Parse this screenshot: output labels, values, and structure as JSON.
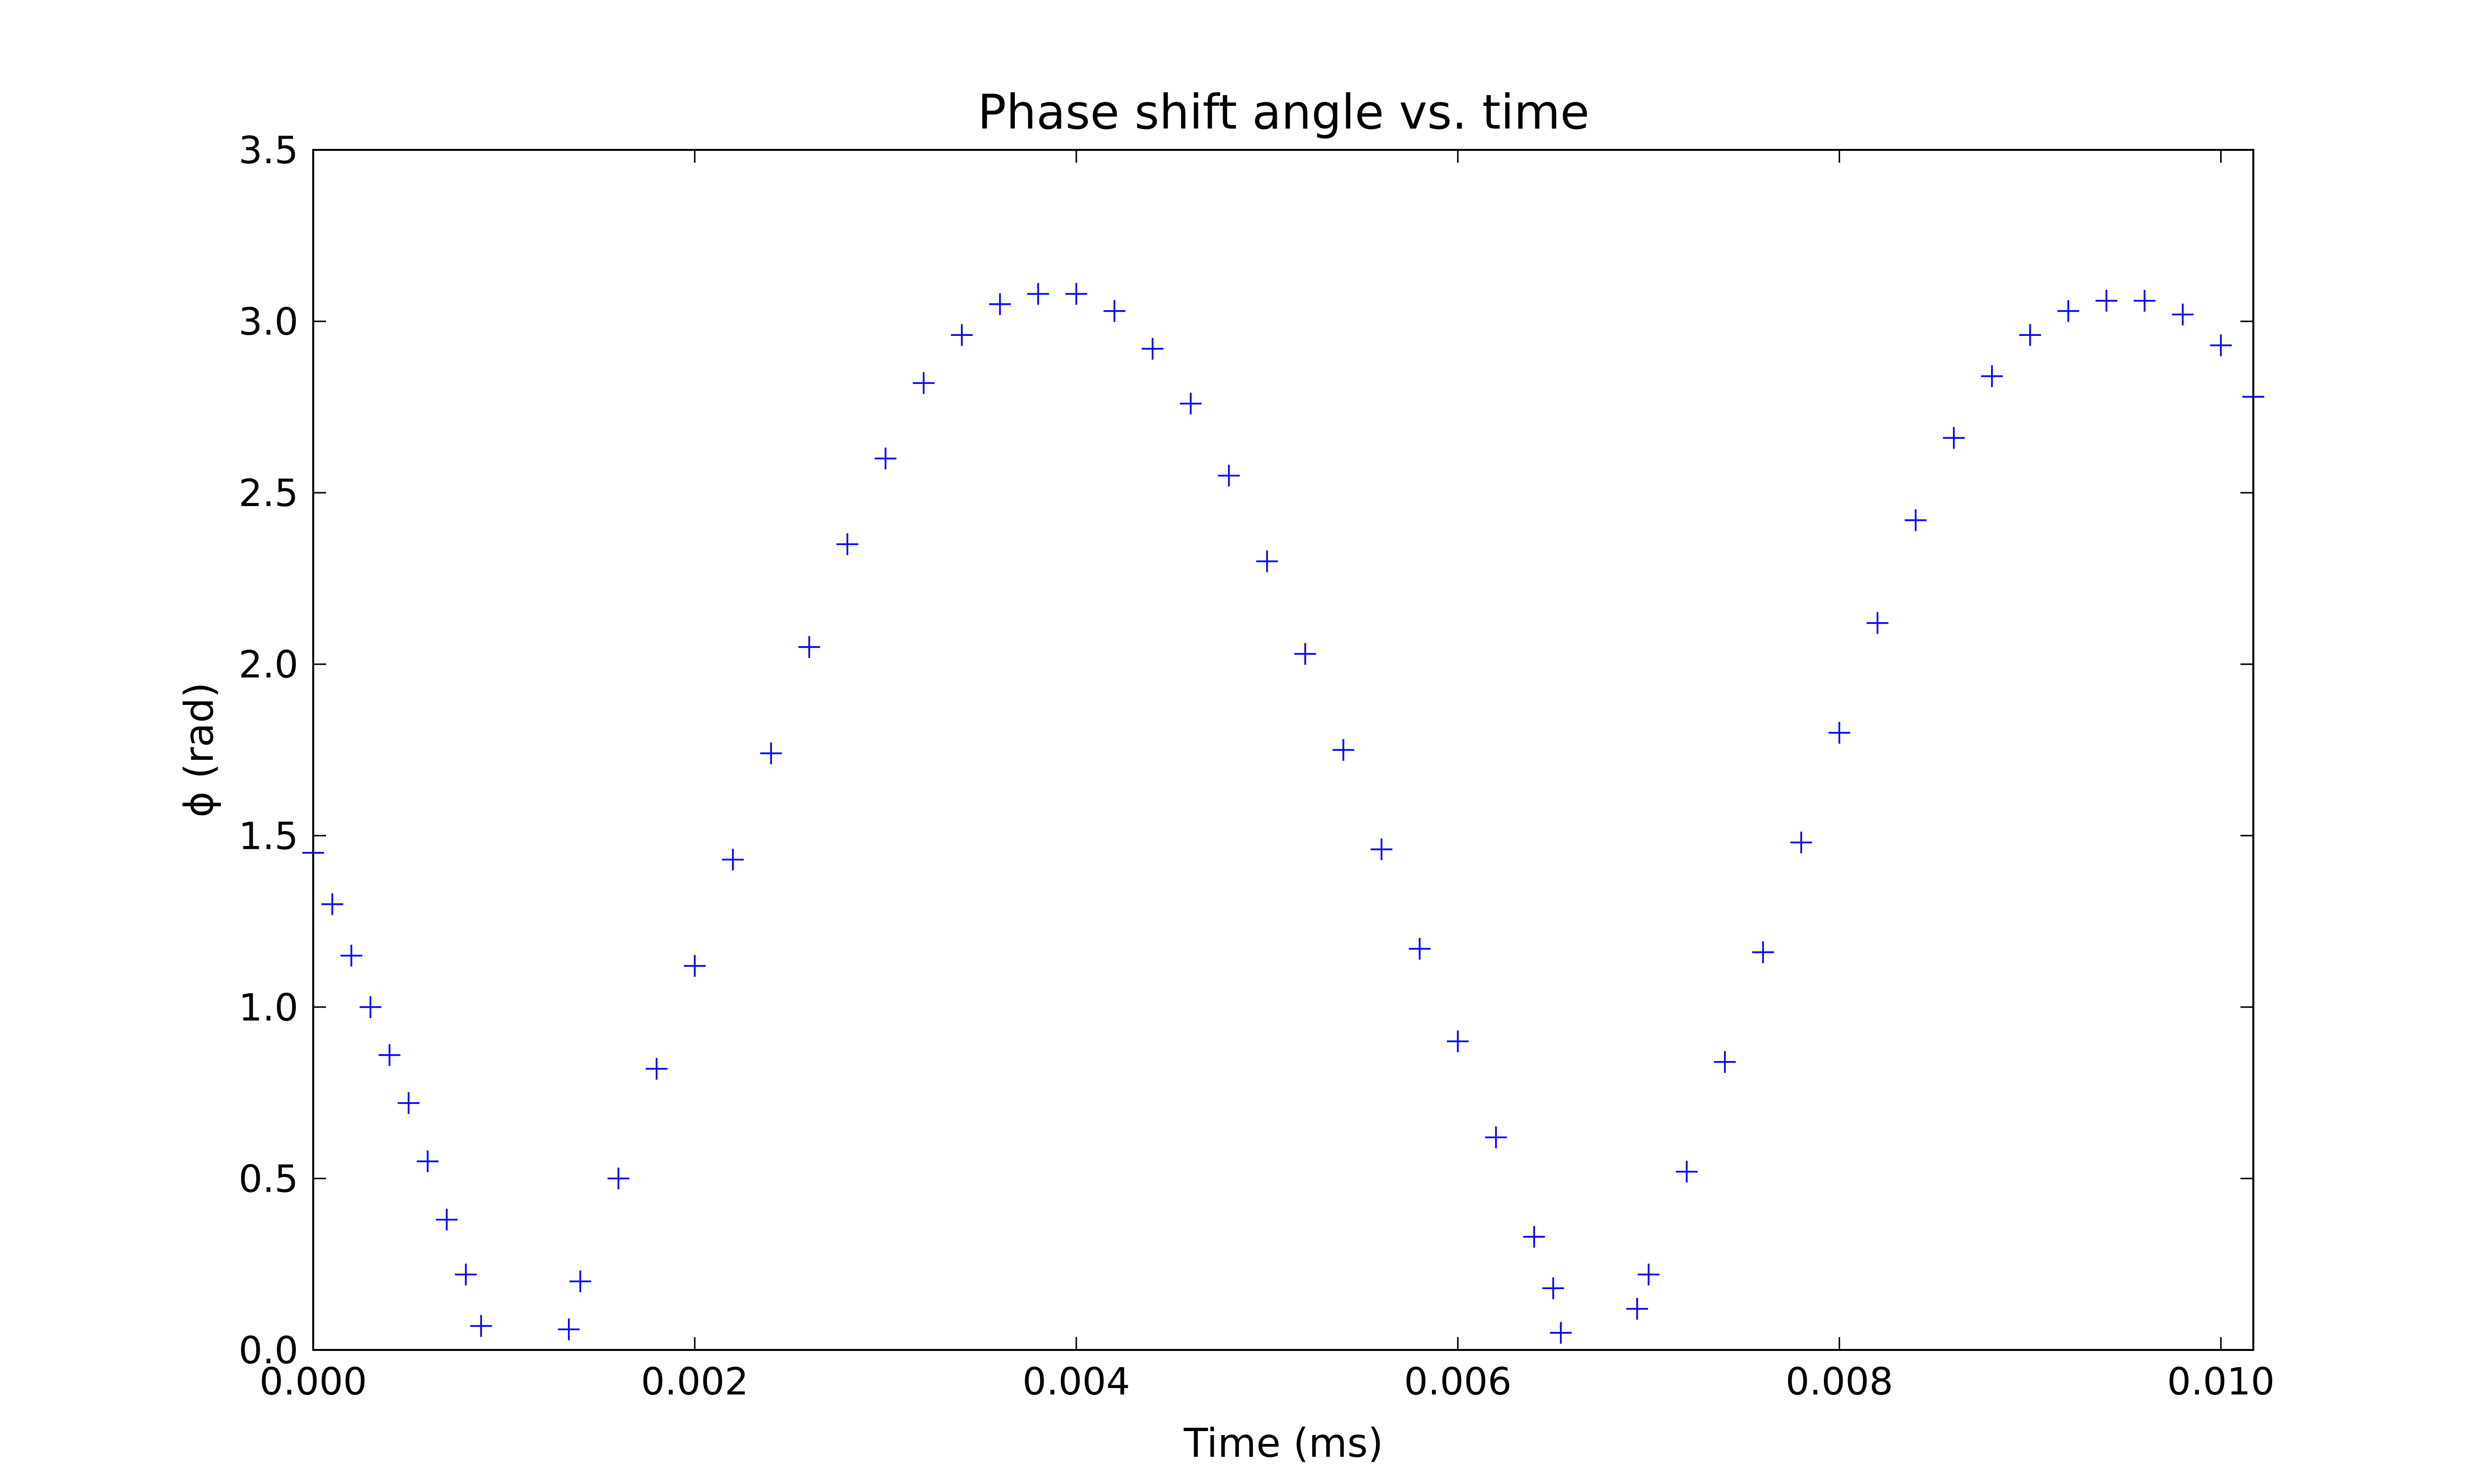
{
  "chart_data": {
    "type": "scatter",
    "title": "Phase shift angle vs. time",
    "x_label": "Time (ms)",
    "y_label": "ϕ (rad)",
    "marker": "+",
    "series": [
      {
        "color": "#0000ff",
        "x": [
          0,
          0.0001,
          0.0002,
          0.0003,
          0.0004,
          0.0005,
          0.0006,
          0.0007,
          0.0008,
          0.00088,
          0.00134,
          0.0014,
          0.0016,
          0.0018,
          0.002,
          0.0022,
          0.0024,
          0.0026,
          0.0028,
          0.003,
          0.0032,
          0.0034,
          0.0036,
          0.0038,
          0.004,
          0.0042,
          0.0044,
          0.0046,
          0.0048,
          0.005,
          0.0052,
          0.0054,
          0.0056,
          0.0058,
          0.006,
          0.0062,
          0.0064,
          0.0065,
          0.00654,
          0.00694,
          0.007,
          0.0072,
          0.0074,
          0.0076,
          0.0078,
          0.008,
          0.0082,
          0.0084,
          0.0086,
          0.0088,
          0.009,
          0.0092,
          0.0094,
          0.0096,
          0.0098,
          0.01,
          0.01017
        ],
        "values": [
          1.45,
          1.3,
          1.15,
          1.0,
          0.86,
          0.72,
          0.55,
          0.38,
          0.22,
          0.07,
          0.06,
          0.2,
          0.5,
          0.82,
          1.12,
          1.43,
          1.74,
          2.05,
          2.35,
          2.6,
          2.82,
          2.96,
          3.05,
          3.08,
          3.08,
          3.03,
          2.92,
          2.76,
          2.55,
          2.3,
          2.03,
          1.75,
          1.46,
          1.17,
          0.9,
          0.62,
          0.33,
          0.18,
          0.05,
          0.12,
          0.22,
          0.52,
          0.84,
          1.16,
          1.48,
          1.8,
          2.12,
          2.42,
          2.66,
          2.84,
          2.96,
          3.03,
          3.06,
          3.06,
          3.02,
          2.93,
          2.78
        ]
      }
    ],
    "xlim": [
      0,
      0.01017
    ],
    "ylim": [
      0,
      3.5
    ],
    "xticks": [
      {
        "value": 0,
        "label": "0.000"
      },
      {
        "value": 0.002,
        "label": "0.002"
      },
      {
        "value": 0.004,
        "label": "0.004"
      },
      {
        "value": 0.006,
        "label": "0.006"
      },
      {
        "value": 0.008,
        "label": "0.008"
      },
      {
        "value": 0.01,
        "label": "0.010"
      }
    ],
    "yticks": [
      {
        "value": 0,
        "label": "0.0"
      },
      {
        "value": 0.5,
        "label": "0.5"
      },
      {
        "value": 1,
        "label": "1.0"
      },
      {
        "value": 1.5,
        "label": "1.5"
      },
      {
        "value": 2,
        "label": "2.0"
      },
      {
        "value": 2.5,
        "label": "2.5"
      },
      {
        "value": 3,
        "label": "3.0"
      },
      {
        "value": 3.5,
        "label": "3.5"
      }
    ]
  }
}
